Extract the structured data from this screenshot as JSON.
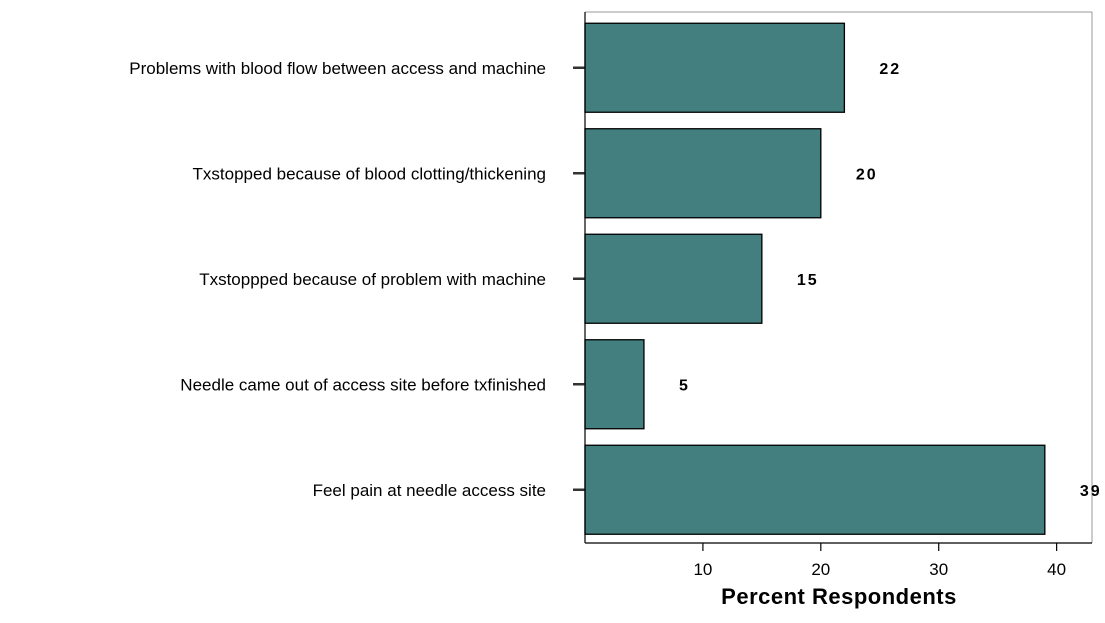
{
  "chart_data": {
    "type": "bar",
    "orientation": "horizontal",
    "categories": [
      "Problems with blood flow between access and machine",
      "Txstopped because of blood clotting/thickening",
      "Txstoppped because of problem with machine",
      "Needle came out of access site before txfinished",
      "Feel pain at needle access site"
    ],
    "values": [
      22,
      20,
      15,
      5,
      39
    ],
    "value_labels": [
      "22",
      "20",
      "15",
      "5",
      "39"
    ],
    "xlabel": "Percent Respondents",
    "ylabel": "",
    "title": "",
    "xlim": [
      0,
      43
    ],
    "xticks": [
      10,
      20,
      30,
      40
    ],
    "xtick_labels": [
      "10",
      "20",
      "30",
      "40"
    ],
    "bar_color": "#447f7f",
    "grid": false,
    "legend": "none"
  }
}
